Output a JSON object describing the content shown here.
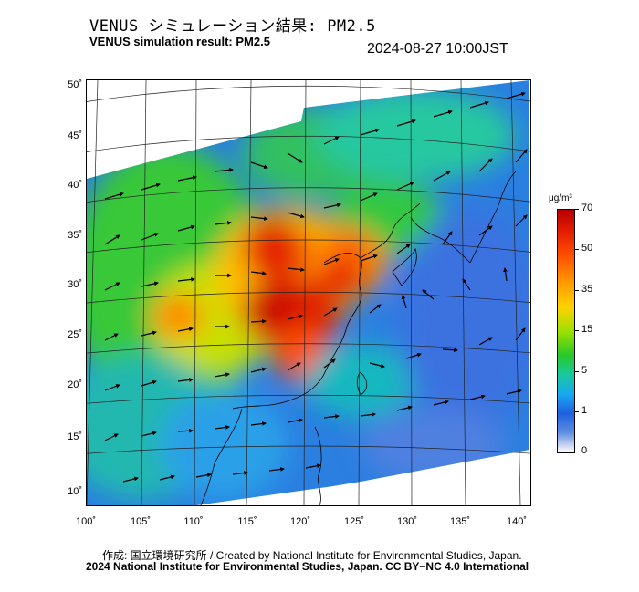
{
  "header": {
    "title_jp": "VENUS シミュレーション結果: PM2.5",
    "title_en": "VENUS simulation result: PM2.5",
    "timestamp": "2024-08-27 10:00JST"
  },
  "map": {
    "latitude_labels": [
      "50˚",
      "45˚",
      "40˚",
      "35˚",
      "30˚",
      "25˚",
      "20˚",
      "15˚",
      "10˚"
    ],
    "longitude_labels": [
      "100˚",
      "105˚",
      "110˚",
      "115˚",
      "120˚",
      "125˚",
      "130˚",
      "135˚",
      "140˚"
    ]
  },
  "colorbar": {
    "unit": "μg/m³",
    "ticks": [
      "70",
      "50",
      "35",
      "15",
      "5",
      "1",
      "0"
    ]
  },
  "footer": {
    "credit": "作成: 国立環境研究所 / Created by National Institute for Environmental Studies, Japan.",
    "copyright": "2024 National Institute for Environmental Studies, Japan. CC BY−NC 4.0 International"
  }
}
